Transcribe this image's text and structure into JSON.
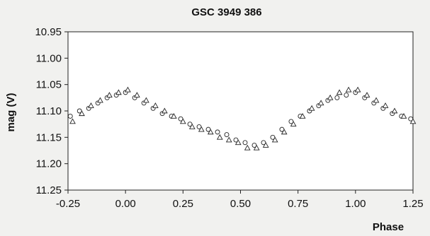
{
  "chart_data": {
    "type": "scatter",
    "title": "GSC 3949 386",
    "xlabel": "Phase",
    "ylabel": "mag (V)",
    "xlim": [
      -0.25,
      1.25
    ],
    "ylim": [
      10.95,
      11.25
    ],
    "y_inverted": true,
    "grid": false,
    "legend": "none",
    "x_ticks": [
      "-0.25",
      "0.00",
      "0.25",
      "0.50",
      "0.75",
      "1.00",
      "1.25"
    ],
    "y_ticks": [
      "10.95",
      "11.00",
      "11.05",
      "11.10",
      "11.15",
      "11.20",
      "11.25"
    ],
    "colors": {
      "background": "#f1f1ef",
      "plot_area": "#ffffff",
      "marker_stroke": "#222222",
      "axis": "#222222"
    },
    "series": [
      {
        "marker": "circle",
        "x": [
          -0.24,
          -0.2,
          -0.16,
          -0.12,
          -0.08,
          -0.04,
          0.0,
          0.04,
          0.08,
          0.12,
          0.16,
          0.2,
          0.24,
          0.28,
          0.32,
          0.36,
          0.4,
          0.44,
          0.48,
          0.52,
          0.56,
          0.6,
          0.64,
          0.68,
          0.72,
          0.76,
          0.8,
          0.84,
          0.88,
          0.92,
          0.96,
          1.0,
          1.04,
          1.08,
          1.12,
          1.16,
          1.2,
          1.24
        ],
        "y": [
          11.11,
          11.1,
          11.095,
          11.085,
          11.075,
          11.07,
          11.065,
          11.075,
          11.085,
          11.095,
          11.105,
          11.11,
          11.115,
          11.125,
          11.13,
          11.135,
          11.14,
          11.145,
          11.155,
          11.16,
          11.165,
          11.16,
          11.15,
          11.135,
          11.12,
          11.11,
          11.1,
          11.09,
          11.08,
          11.075,
          11.07,
          11.065,
          11.075,
          11.085,
          11.095,
          11.105,
          11.11,
          11.115
        ]
      },
      {
        "marker": "triangle",
        "x": [
          -0.23,
          -0.19,
          -0.15,
          -0.11,
          -0.07,
          -0.03,
          0.01,
          0.05,
          0.09,
          0.13,
          0.17,
          0.21,
          0.25,
          0.29,
          0.33,
          0.37,
          0.41,
          0.45,
          0.49,
          0.53,
          0.57,
          0.61,
          0.65,
          0.69,
          0.73,
          0.77,
          0.81,
          0.85,
          0.89,
          0.93,
          0.97,
          1.01,
          1.05,
          1.09,
          1.13,
          1.17,
          1.21,
          1.25
        ],
        "y": [
          11.12,
          11.105,
          11.09,
          11.08,
          11.07,
          11.065,
          11.06,
          11.07,
          11.08,
          11.09,
          11.1,
          11.11,
          11.12,
          11.13,
          11.135,
          11.14,
          11.15,
          11.155,
          11.16,
          11.17,
          11.17,
          11.165,
          11.155,
          11.14,
          11.125,
          11.11,
          11.095,
          11.085,
          11.075,
          11.065,
          11.06,
          11.06,
          11.07,
          11.08,
          11.09,
          11.1,
          11.11,
          11.12
        ]
      }
    ]
  }
}
